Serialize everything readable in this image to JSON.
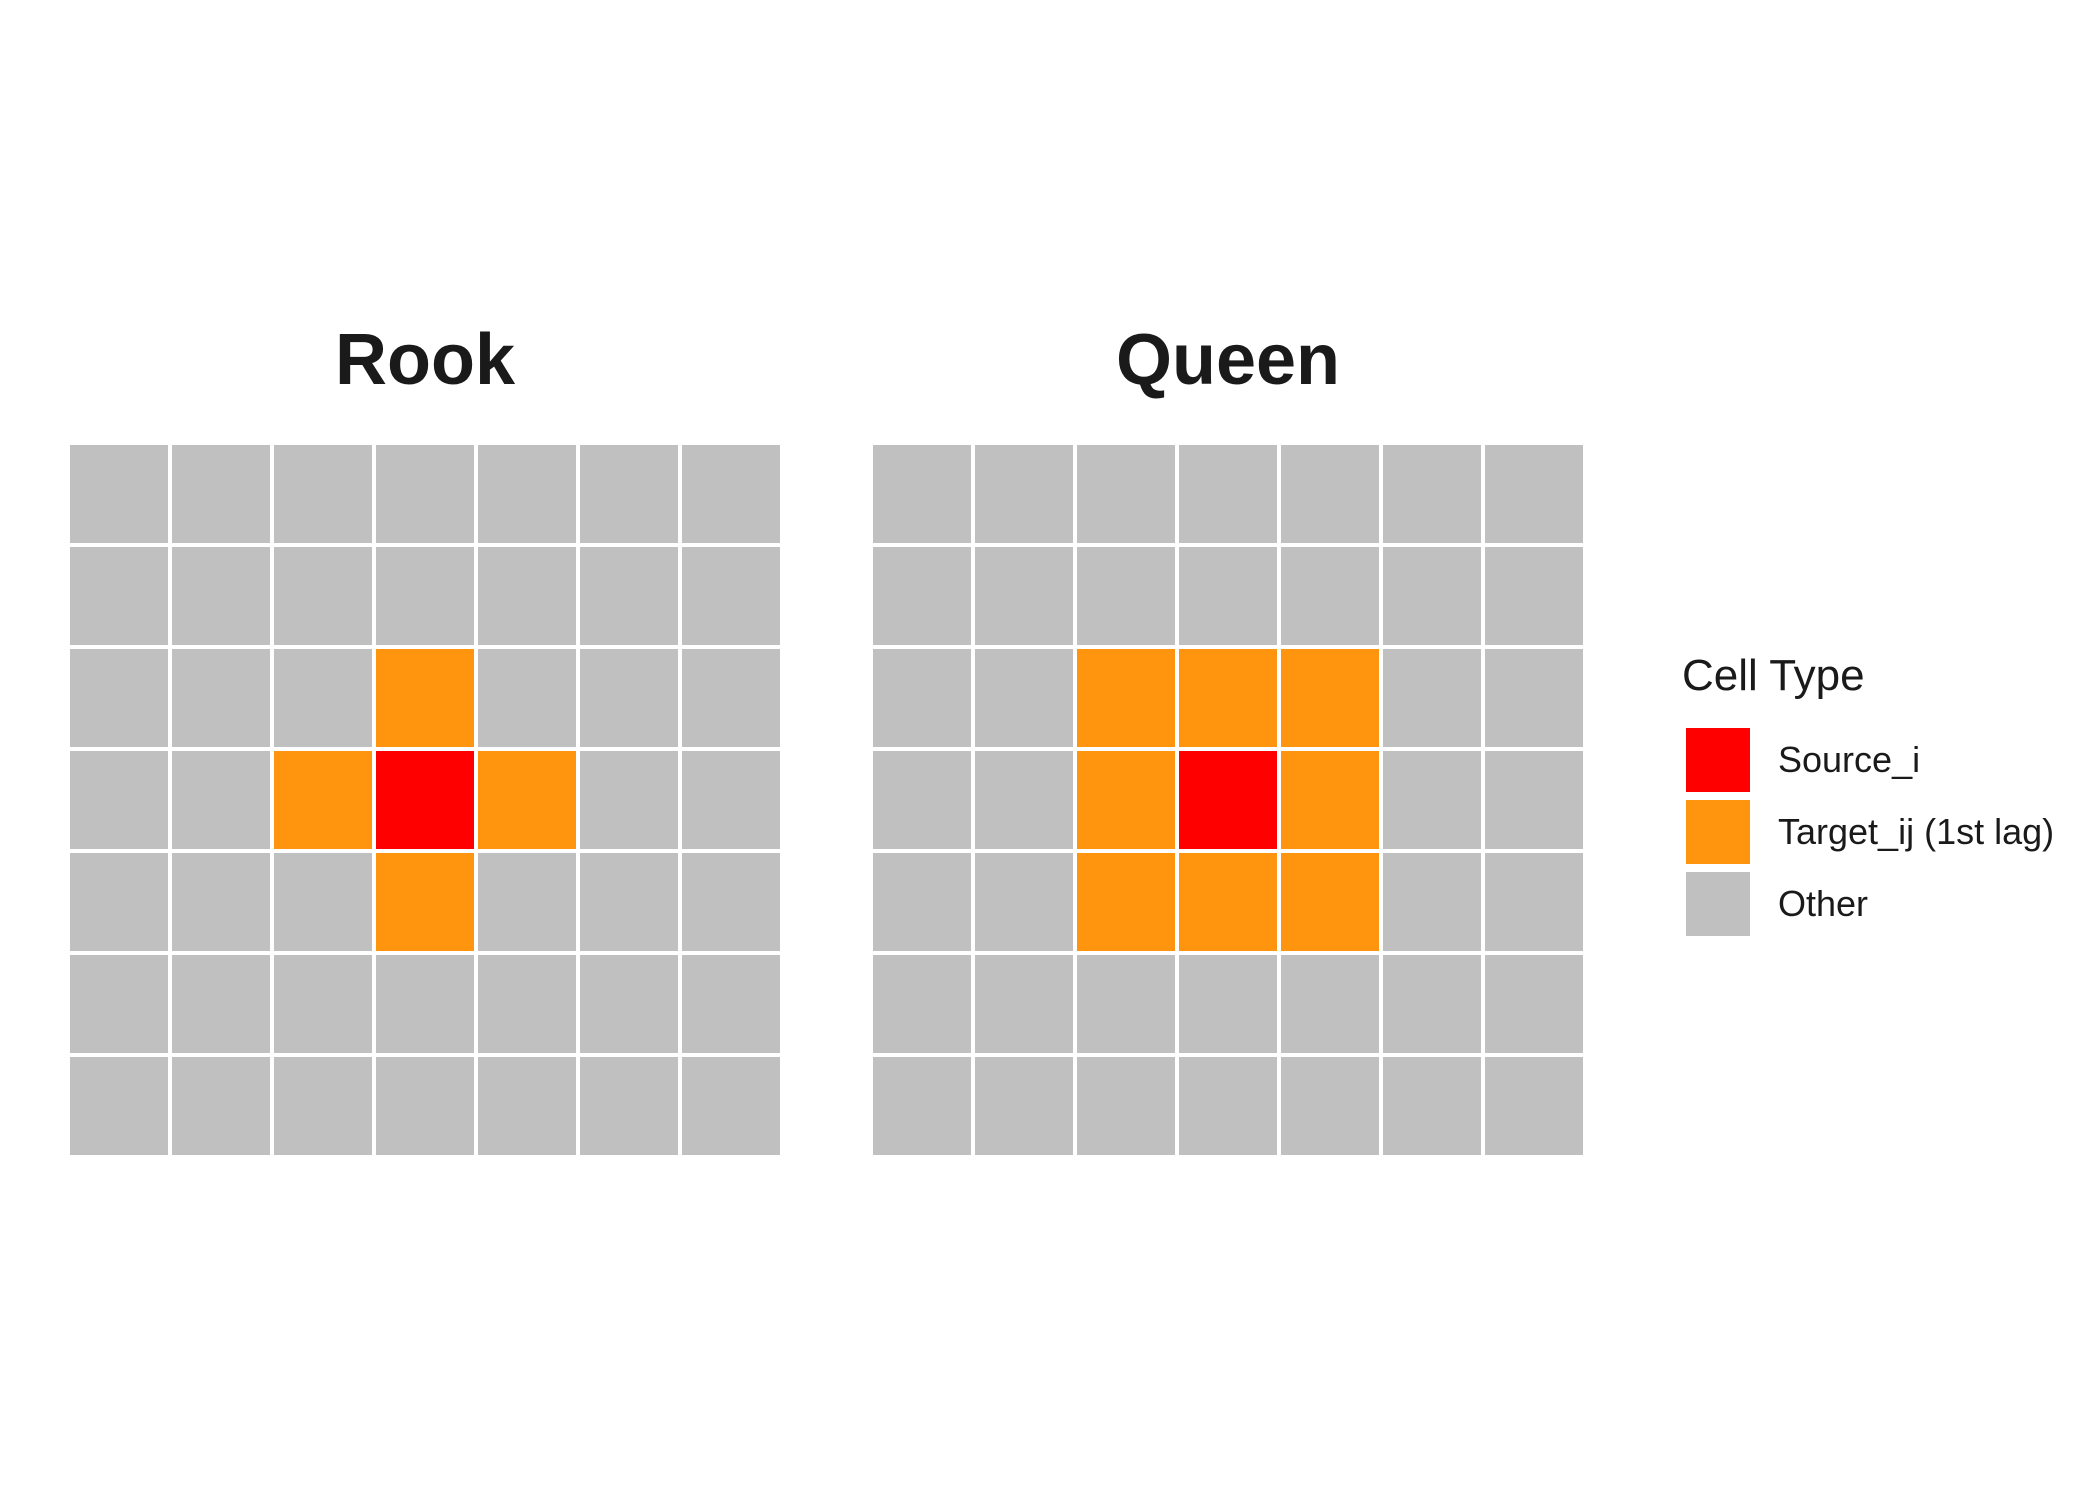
{
  "panels": [
    {
      "title": "Rook",
      "size": 7,
      "cells": [
        [
          "other",
          "other",
          "other",
          "other",
          "other",
          "other",
          "other"
        ],
        [
          "other",
          "other",
          "other",
          "other",
          "other",
          "other",
          "other"
        ],
        [
          "other",
          "other",
          "other",
          "target",
          "other",
          "other",
          "other"
        ],
        [
          "other",
          "other",
          "target",
          "source",
          "target",
          "other",
          "other"
        ],
        [
          "other",
          "other",
          "other",
          "target",
          "other",
          "other",
          "other"
        ],
        [
          "other",
          "other",
          "other",
          "other",
          "other",
          "other",
          "other"
        ],
        [
          "other",
          "other",
          "other",
          "other",
          "other",
          "other",
          "other"
        ]
      ]
    },
    {
      "title": "Queen",
      "size": 7,
      "cells": [
        [
          "other",
          "other",
          "other",
          "other",
          "other",
          "other",
          "other"
        ],
        [
          "other",
          "other",
          "other",
          "other",
          "other",
          "other",
          "other"
        ],
        [
          "other",
          "other",
          "target",
          "target",
          "target",
          "other",
          "other"
        ],
        [
          "other",
          "other",
          "target",
          "source",
          "target",
          "other",
          "other"
        ],
        [
          "other",
          "other",
          "target",
          "target",
          "target",
          "other",
          "other"
        ],
        [
          "other",
          "other",
          "other",
          "other",
          "other",
          "other",
          "other"
        ],
        [
          "other",
          "other",
          "other",
          "other",
          "other",
          "other",
          "other"
        ]
      ]
    }
  ],
  "legend": {
    "title": "Cell Type",
    "items": [
      {
        "key": "source",
        "label": "Source_i",
        "color": "#ff0000"
      },
      {
        "key": "target",
        "label": "Target_ij (1st lag)",
        "color": "#ff950e"
      },
      {
        "key": "other",
        "label": "Other",
        "color": "#c0c0c0"
      }
    ]
  }
}
